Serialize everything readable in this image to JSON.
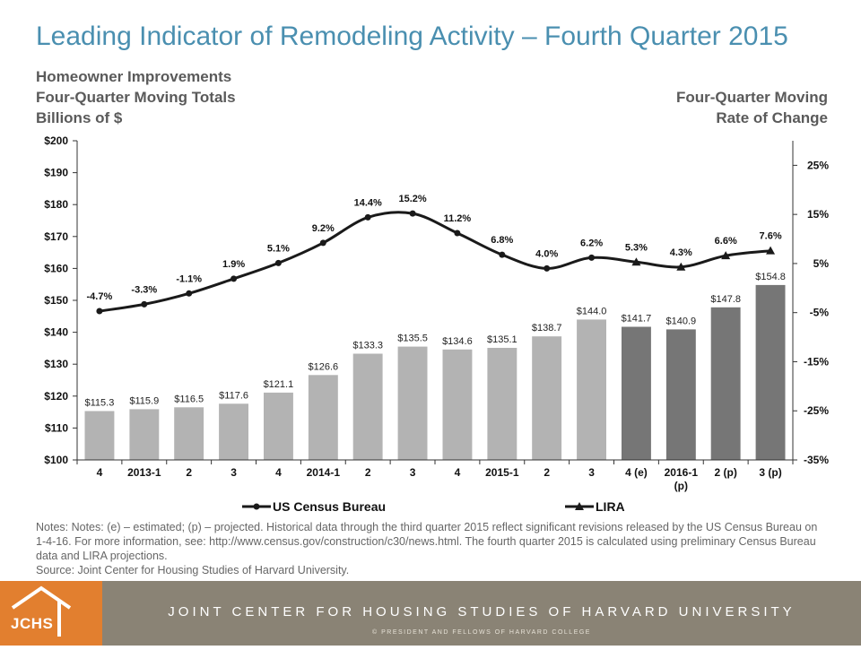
{
  "header": {
    "title": "Leading Indicator of Remodeling Activity – Fourth Quarter 2015",
    "left_subtitle": [
      "Homeowner Improvements",
      "Four-Quarter Moving Totals",
      "Billions of $"
    ],
    "right_subtitle": [
      "Four-Quarter Moving",
      "Rate of Change"
    ]
  },
  "chart_data": {
    "type": "bar+line",
    "categories": [
      "4",
      "2013-1",
      "2",
      "3",
      "4",
      "2014-1",
      "2",
      "3",
      "4",
      "2015-1",
      "2",
      "3",
      "4 (e)",
      "2016-1 (p)",
      "2 (p)",
      "3 (p)"
    ],
    "bars": {
      "name": "",
      "values": [
        115.3,
        115.9,
        116.5,
        117.6,
        121.1,
        126.6,
        133.3,
        135.5,
        134.6,
        135.1,
        138.7,
        144.0,
        141.7,
        140.9,
        147.8,
        154.8
      ],
      "labels": [
        "$115.3",
        "$115.9",
        "$116.5",
        "$117.6",
        "$121.1",
        "$126.6",
        "$133.3",
        "$135.5",
        "$134.6",
        "$135.1",
        "$138.7",
        "$144.0",
        "$141.7",
        "$140.9",
        "$147.8",
        "$154.8"
      ],
      "colors": [
        "#b3b3b3",
        "#b3b3b3",
        "#b3b3b3",
        "#b3b3b3",
        "#b3b3b3",
        "#b3b3b3",
        "#b3b3b3",
        "#b3b3b3",
        "#b3b3b3",
        "#b3b3b3",
        "#b3b3b3",
        "#b3b3b3",
        "#767676",
        "#767676",
        "#767676",
        "#767676"
      ]
    },
    "line": {
      "values": [
        -4.7,
        -3.3,
        -1.1,
        1.9,
        5.1,
        9.2,
        14.4,
        15.2,
        11.2,
        6.8,
        4.0,
        6.2,
        5.3,
        4.3,
        6.6,
        7.6
      ],
      "labels": [
        "-4.7%",
        "-3.3%",
        "-1.1%",
        "1.9%",
        "5.1%",
        "9.2%",
        "14.4%",
        "15.2%",
        "11.2%",
        "6.8%",
        "4.0%",
        "6.2%",
        "5.3%",
        "4.3%",
        "6.6%",
        "7.6%"
      ],
      "census_count": 12
    },
    "left_axis": {
      "ylim": [
        100,
        200
      ],
      "ticks": [
        100,
        110,
        120,
        130,
        140,
        150,
        160,
        170,
        180,
        190,
        200
      ],
      "tick_labels": [
        "$100",
        "$110",
        "$120",
        "$130",
        "$140",
        "$150",
        "$160",
        "$170",
        "$180",
        "$190",
        "$200"
      ]
    },
    "right_axis": {
      "ylim": [
        -35,
        30
      ],
      "ticks": [
        -35,
        -25,
        -15,
        -5,
        5,
        15,
        25
      ],
      "tick_labels": [
        "-35%",
        "-25%",
        "-15%",
        "-5%",
        "5%",
        "15%",
        "25%"
      ]
    },
    "legend": [
      {
        "name": "US Census Bureau",
        "marker": "circle"
      },
      {
        "name": "LIRA",
        "marker": "triangle"
      }
    ],
    "legend_position": "bottom",
    "grid": false,
    "colors": {
      "bar_historical": "#b3b3b3",
      "bar_projected": "#767676",
      "line": "#1a1a1a"
    }
  },
  "notes": [
    "Notes: Notes: (e) – estimated; (p) – projected.  Historical data through the third quarter 2015 reflect significant revisions released by the US Census Bureau on 1-4-16. For more information, see: http://www.census.gov/construction/c30/news.html. The fourth quarter 2015 is calculated using preliminary Census Bureau data and LIRA projections.",
    "Source: Joint Center for Housing Studies of Harvard University."
  ],
  "footer": {
    "logo_text": "JCHS",
    "organization": "JOINT CENTER FOR HOUSING STUDIES OF HARVARD UNIVERSITY",
    "copyright": "© PRESIDENT AND FELLOWS OF HARVARD COLLEGE",
    "colors": {
      "logo_bg": "#e27f2f",
      "band_bg": "#8a8375"
    }
  }
}
